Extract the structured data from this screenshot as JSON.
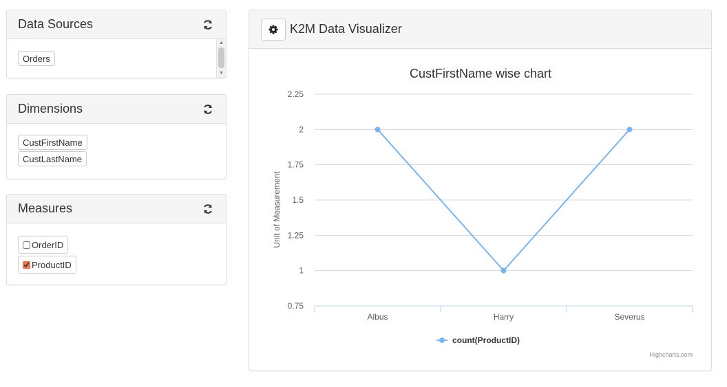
{
  "panels": {
    "data_sources": {
      "title": "Data Sources",
      "items": [
        "Orders"
      ]
    },
    "dimensions": {
      "title": "Dimensions",
      "items": [
        "CustFirstName",
        "CustLastName"
      ]
    },
    "measures": {
      "title": "Measures",
      "items": [
        {
          "label": "OrderID",
          "checked": false
        },
        {
          "label": "ProductID",
          "checked": true
        }
      ]
    }
  },
  "visualizer": {
    "title": "K2M Data Visualizer",
    "credits": "Highcharts.com"
  },
  "colors": {
    "series": "#7cb5ec",
    "checked_accent": "#e8784f"
  },
  "chart_data": {
    "type": "line",
    "title": "CustFirstName wise chart",
    "xlabel": "",
    "ylabel": "Unit of Measurement",
    "categories": [
      "Albus",
      "Harry",
      "Severus"
    ],
    "series": [
      {
        "name": "count(ProductID)",
        "values": [
          2,
          1,
          2
        ]
      }
    ],
    "ylim": [
      0.75,
      2.25
    ],
    "yticks": [
      "0.75",
      "1",
      "1.25",
      "1.5",
      "1.75",
      "2",
      "2.25"
    ],
    "grid": true,
    "legend": "bottom-center"
  }
}
